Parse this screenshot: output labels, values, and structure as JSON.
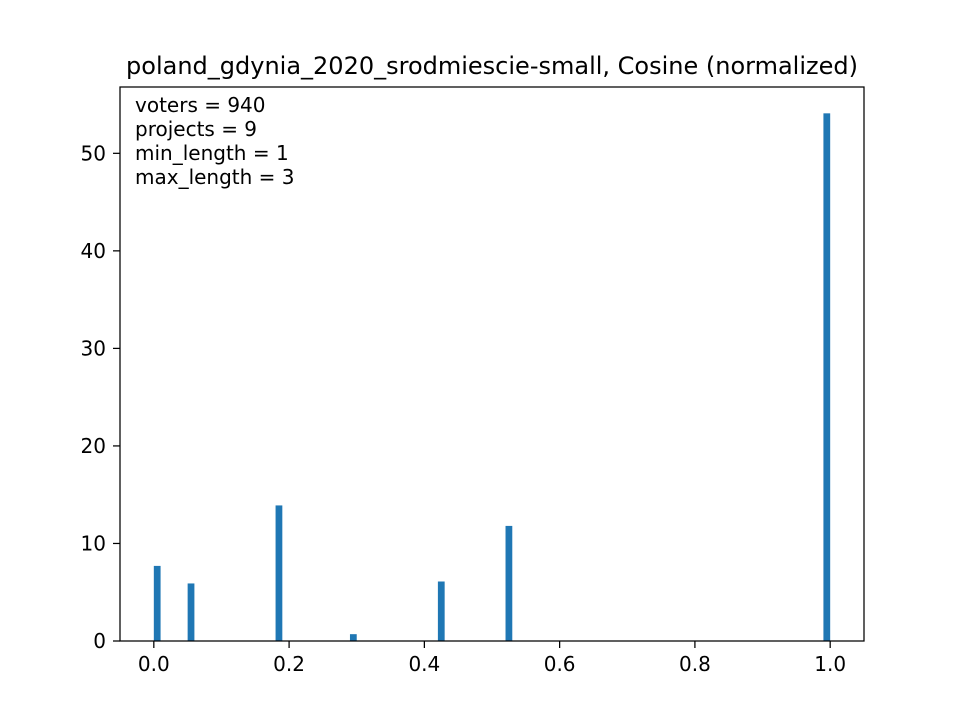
{
  "chart_data": {
    "type": "bar",
    "title": "poland_gdynia_2020_srodmiescie-small, Cosine (normalized)",
    "xlabel": "",
    "ylabel": "",
    "xlim": [
      -0.05,
      1.05
    ],
    "ylim": [
      0,
      56.8
    ],
    "x_ticks": [
      0.0,
      0.2,
      0.4,
      0.6,
      0.8,
      1.0
    ],
    "x_tick_labels": [
      "0.0",
      "0.2",
      "0.4",
      "0.6",
      "0.8",
      "1.0"
    ],
    "y_ticks": [
      0,
      10,
      20,
      30,
      40,
      50
    ],
    "y_tick_labels": [
      "0",
      "10",
      "20",
      "30",
      "40",
      "50"
    ],
    "bin_width": 0.01,
    "bars": [
      {
        "x": 0.005,
        "value": 7.7
      },
      {
        "x": 0.055,
        "value": 5.9
      },
      {
        "x": 0.185,
        "value": 13.9
      },
      {
        "x": 0.295,
        "value": 0.7
      },
      {
        "x": 0.425,
        "value": 6.1
      },
      {
        "x": 0.525,
        "value": 11.8
      },
      {
        "x": 0.995,
        "value": 54.1
      }
    ],
    "annotations": [
      "voters = 940",
      "projects = 9",
      "min_length = 1",
      "max_length = 3"
    ],
    "bar_color": "#1f77b4",
    "grid": false,
    "legend": "none"
  }
}
